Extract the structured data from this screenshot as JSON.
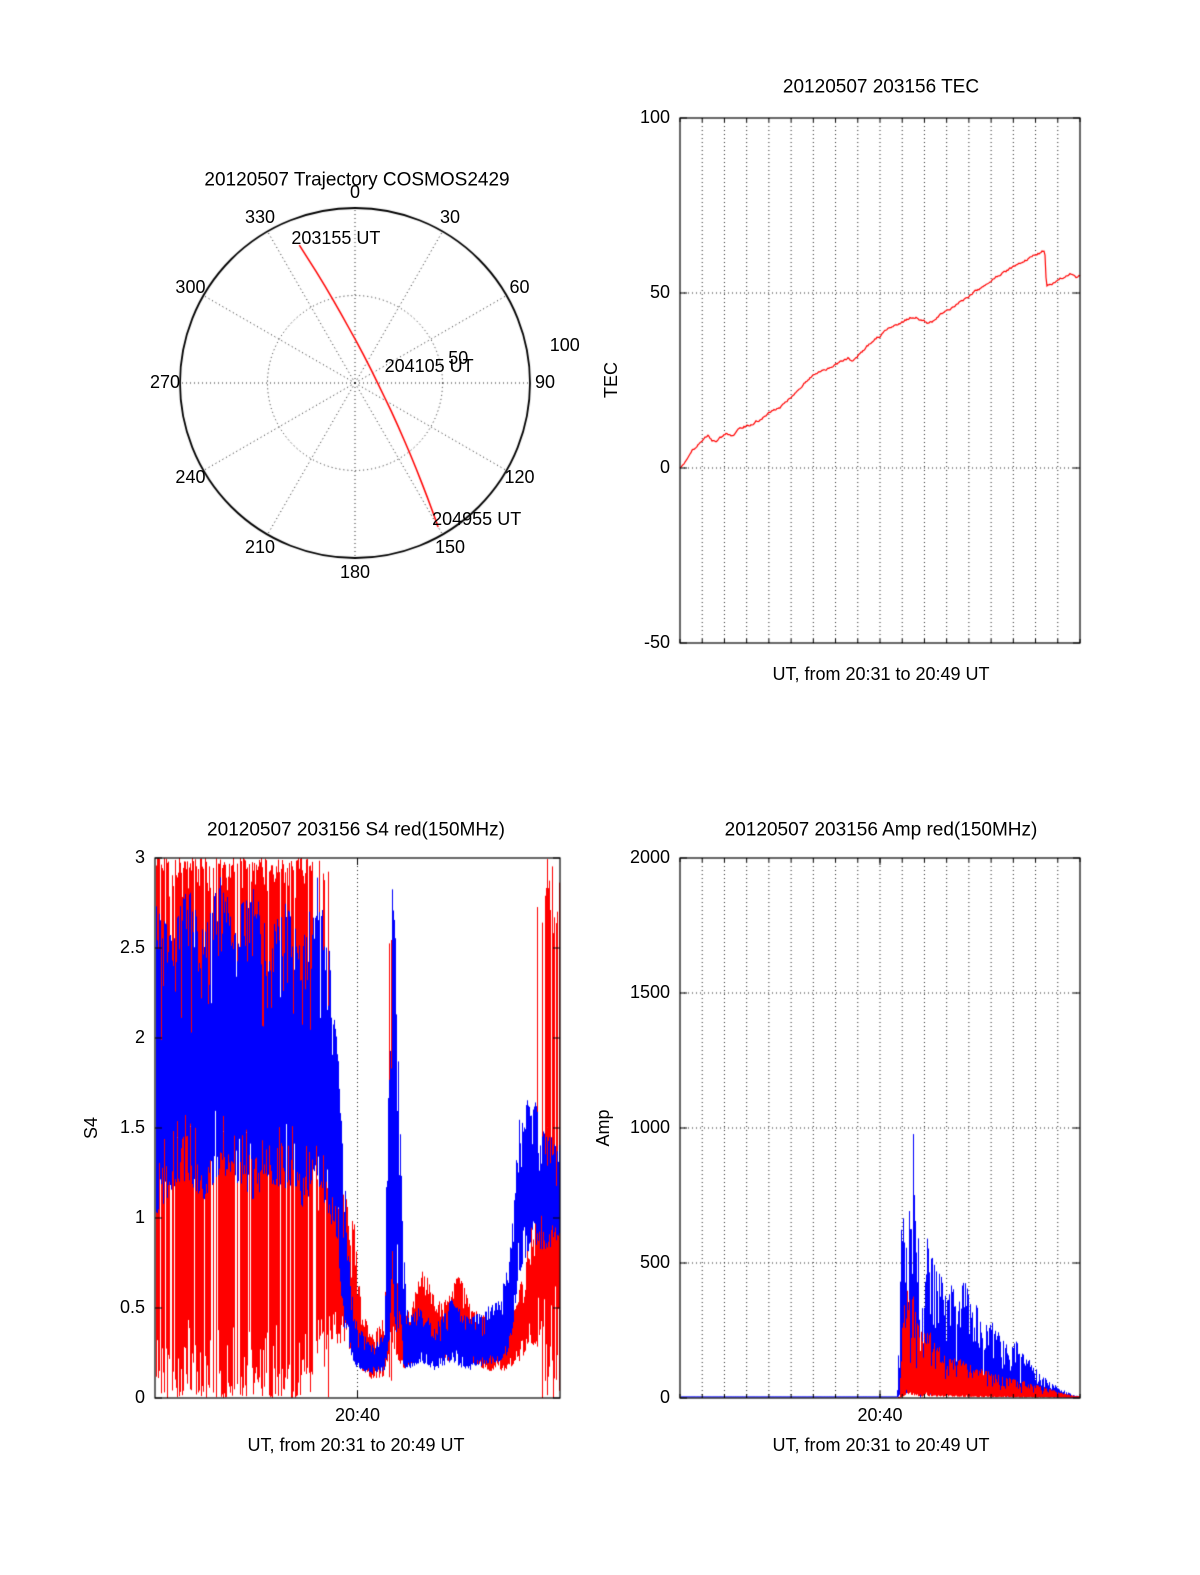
{
  "figure": {
    "background": "#ffffff"
  },
  "chart_data": [
    {
      "id": "trajectory",
      "type": "polar_trajectory",
      "title": "20120507 Trajectory COSMOS2429",
      "angle_ticks": [
        "0",
        "30",
        "60",
        "90",
        "120",
        "150",
        "180",
        "210",
        "240",
        "270",
        "300",
        "330"
      ],
      "ring_ticks": [
        "50",
        "100"
      ],
      "rings": [
        50,
        100
      ],
      "trajectory": {
        "color": "#ff0000",
        "points_xy": [
          [
            -0.318,
            0.788
          ],
          [
            -0.269,
            0.711
          ],
          [
            -0.22,
            0.634
          ],
          [
            -0.173,
            0.556
          ],
          [
            -0.127,
            0.478
          ],
          [
            -0.082,
            0.399
          ],
          [
            -0.038,
            0.32
          ],
          [
            0.006,
            0.241
          ],
          [
            0.048,
            0.162
          ],
          [
            0.089,
            0.082
          ],
          [
            0.129,
            0.001
          ],
          [
            0.168,
            -0.08
          ],
          [
            0.207,
            -0.161
          ],
          [
            0.244,
            -0.242
          ],
          [
            0.28,
            -0.324
          ],
          [
            0.315,
            -0.406
          ],
          [
            0.349,
            -0.489
          ],
          [
            0.382,
            -0.572
          ],
          [
            0.414,
            -0.655
          ],
          [
            0.445,
            -0.739
          ],
          [
            0.475,
            -0.823
          ]
        ],
        "time_labels": [
          {
            "text": "203155 UT",
            "x": -0.318,
            "y": 0.788
          },
          {
            "text": "204105 UT",
            "x": 0.129,
            "y": 0.001
          },
          {
            "text": "204955 UT",
            "x": 0.475,
            "y": -0.823
          }
        ]
      }
    },
    {
      "id": "tec",
      "type": "line",
      "title": "20120507 203156 TEC",
      "ylabel": "TEC",
      "xlabel": "UT, from 20:31 to 20:49 UT",
      "ylim": [
        -50,
        100
      ],
      "yticks": [
        -50,
        0,
        50,
        100
      ],
      "x_minutes": 18,
      "grid": {
        "minute_grid": true,
        "minute_ticks": true,
        "y_values": [
          0,
          50
        ]
      },
      "series": [
        {
          "name": "TEC",
          "color": "#ff0000",
          "points": [
            [
              0,
              0
            ],
            [
              0.01,
              1.5
            ],
            [
              0.02,
              3.5
            ],
            [
              0.03,
              5
            ],
            [
              0.045,
              6.5
            ],
            [
              0.06,
              8.8
            ],
            [
              0.07,
              9.2
            ],
            [
              0.08,
              7.8
            ],
            [
              0.09,
              7.6
            ],
            [
              0.1,
              8.6
            ],
            [
              0.115,
              9.6
            ],
            [
              0.13,
              9.2
            ],
            [
              0.145,
              10.8
            ],
            [
              0.16,
              11.8
            ],
            [
              0.175,
              12.2
            ],
            [
              0.19,
              13.4
            ],
            [
              0.205,
              13.8
            ],
            [
              0.22,
              15.5
            ],
            [
              0.235,
              16.4
            ],
            [
              0.25,
              17.2
            ],
            [
              0.265,
              18.8
            ],
            [
              0.28,
              20.4
            ],
            [
              0.3,
              22.5
            ],
            [
              0.315,
              24.6
            ],
            [
              0.33,
              26.2
            ],
            [
              0.345,
              27.3
            ],
            [
              0.36,
              28.1
            ],
            [
              0.375,
              28.8
            ],
            [
              0.39,
              29.6
            ],
            [
              0.405,
              30.4
            ],
            [
              0.42,
              31.2
            ],
            [
              0.43,
              30.4
            ],
            [
              0.44,
              31.6
            ],
            [
              0.455,
              33.2
            ],
            [
              0.47,
              34.8
            ],
            [
              0.485,
              36.4
            ],
            [
              0.5,
              37.8
            ],
            [
              0.515,
              39.4
            ],
            [
              0.53,
              40.6
            ],
            [
              0.545,
              41.2
            ],
            [
              0.56,
              42.0
            ],
            [
              0.575,
              42.8
            ],
            [
              0.59,
              43.2
            ],
            [
              0.605,
              42.2
            ],
            [
              0.62,
              41.2
            ],
            [
              0.635,
              41.8
            ],
            [
              0.65,
              43.6
            ],
            [
              0.67,
              45.4
            ],
            [
              0.7,
              47.4
            ],
            [
              0.73,
              49.6
            ],
            [
              0.76,
              52.0
            ],
            [
              0.79,
              54.4
            ],
            [
              0.82,
              56.6
            ],
            [
              0.85,
              58.6
            ],
            [
              0.875,
              60.2
            ],
            [
              0.9,
              61.4
            ],
            [
              0.912,
              62.2
            ],
            [
              0.916,
              52.2
            ],
            [
              0.93,
              52.8
            ],
            [
              0.945,
              53.6
            ],
            [
              0.96,
              54.6
            ],
            [
              0.975,
              55.2
            ],
            [
              0.99,
              54.4
            ],
            [
              1.0,
              55.0
            ]
          ]
        }
      ]
    },
    {
      "id": "s4",
      "type": "scintillation",
      "title": "20120507 203156 S4 red(150MHz)",
      "ylabel": "S4",
      "xlabel": "UT, from 20:31 to 20:49 UT",
      "ylim": [
        0,
        3
      ],
      "yticks": [
        0,
        0.5,
        1,
        1.5,
        2,
        2.5,
        3
      ],
      "xticks": [
        {
          "label": "20:40",
          "frac": 0.5
        }
      ],
      "x_minutes": 18,
      "grid": {
        "minute_grid": false,
        "minute_ticks": false,
        "x_fracs": [
          0.5
        ]
      },
      "red": {
        "color": "#ff0000",
        "ragged": 0.5,
        "lofactor": 0.3,
        "saturated_regions": [
          {
            "t0": 0,
            "t1": 0.385,
            "density": 0.9
          },
          {
            "t0": 0.385,
            "t1": 0.43,
            "density": 0.4,
            "fallback": [
              0.35,
              1.6
            ]
          }
        ],
        "spike_regions": [
          {
            "t0": 0.43,
            "t1": 0.462,
            "p": 0.2,
            "top": 3.0
          },
          {
            "t0": 0.575,
            "t1": 0.59,
            "p": 0.3,
            "top": 2.6
          },
          {
            "t0": 0.915,
            "t1": 0.952,
            "p": 0.1,
            "top": 3.0
          },
          {
            "t0": 0.952,
            "t1": 1.0,
            "p": 0.55,
            "top": 3.0
          }
        ],
        "envelope": [
          [
            0.43,
            0.3,
            1.4
          ],
          [
            0.46,
            0.3,
            1.2
          ],
          [
            0.49,
            0.25,
            1.0
          ],
          [
            0.51,
            0.15,
            0.5
          ],
          [
            0.535,
            0.1,
            0.35
          ],
          [
            0.565,
            0.12,
            0.45
          ],
          [
            0.578,
            0.2,
            1.2
          ],
          [
            0.585,
            0.3,
            2.2
          ],
          [
            0.592,
            0.2,
            1.0
          ],
          [
            0.6,
            0.15,
            0.5
          ],
          [
            0.63,
            0.18,
            0.5
          ],
          [
            0.66,
            0.25,
            0.75
          ],
          [
            0.69,
            0.2,
            0.55
          ],
          [
            0.72,
            0.2,
            0.55
          ],
          [
            0.75,
            0.25,
            0.7
          ],
          [
            0.78,
            0.2,
            0.5
          ],
          [
            0.82,
            0.15,
            0.45
          ],
          [
            0.86,
            0.15,
            0.4
          ],
          [
            0.89,
            0.18,
            0.5
          ],
          [
            0.915,
            0.25,
            0.8
          ],
          [
            0.94,
            0.3,
            1.1
          ],
          [
            0.96,
            0.4,
            1.3
          ],
          [
            1.0,
            0.5,
            1.3
          ]
        ]
      },
      "blue": {
        "color": "#0000ff",
        "ragged": 0.55,
        "lofactor": 0.3,
        "envelope": [
          [
            0,
            1.0,
            2.75
          ],
          [
            0.04,
            1.15,
            2.6
          ],
          [
            0.08,
            1.2,
            2.85
          ],
          [
            0.12,
            1.1,
            2.6
          ],
          [
            0.16,
            1.25,
            2.9
          ],
          [
            0.2,
            1.2,
            2.7
          ],
          [
            0.24,
            1.1,
            2.85
          ],
          [
            0.28,
            1.2,
            2.6
          ],
          [
            0.32,
            1.15,
            2.8
          ],
          [
            0.36,
            1.05,
            2.5
          ],
          [
            0.4,
            1.2,
            2.9
          ],
          [
            0.43,
            1.0,
            2.5
          ],
          [
            0.45,
            0.8,
            2.0
          ],
          [
            0.465,
            0.4,
            1.3
          ],
          [
            0.49,
            0.18,
            0.45
          ],
          [
            0.53,
            0.13,
            0.3
          ],
          [
            0.565,
            0.15,
            0.35
          ],
          [
            0.578,
            0.3,
            2.4
          ],
          [
            0.585,
            0.5,
            3.0
          ],
          [
            0.592,
            0.4,
            2.6
          ],
          [
            0.6,
            0.3,
            2.0
          ],
          [
            0.61,
            0.2,
            1.0
          ],
          [
            0.62,
            0.15,
            0.5
          ],
          [
            0.655,
            0.2,
            0.5
          ],
          [
            0.69,
            0.15,
            0.4
          ],
          [
            0.73,
            0.2,
            0.55
          ],
          [
            0.77,
            0.15,
            0.45
          ],
          [
            0.81,
            0.18,
            0.5
          ],
          [
            0.85,
            0.2,
            0.55
          ],
          [
            0.875,
            0.25,
            0.8
          ],
          [
            0.9,
            0.7,
            1.6
          ],
          [
            0.93,
            0.85,
            1.7
          ],
          [
            0.96,
            0.8,
            1.5
          ],
          [
            1,
            0.9,
            1.4
          ]
        ]
      }
    },
    {
      "id": "amp",
      "type": "scintillation",
      "title": "20120507 203156 Amp red(150MHz)",
      "ylabel": "Amp",
      "xlabel": "UT, from 20:31 to 20:49 UT",
      "ylim": [
        0,
        2000
      ],
      "yticks": [
        0,
        500,
        1000,
        1500,
        2000
      ],
      "xticks": [
        {
          "label": "20:40",
          "frac": 0.5
        }
      ],
      "x_minutes": 18,
      "grid": {
        "minute_grid": true,
        "minute_ticks": true,
        "y_values": [
          500,
          1000,
          1500
        ]
      },
      "blue": {
        "color": "#0000ff",
        "ragged": 0.85,
        "lofactor": 0.06,
        "envelope": [
          [
            0.0,
            2,
            5
          ],
          [
            0.54,
            2,
            5
          ],
          [
            0.548,
            5,
            250
          ],
          [
            0.552,
            10,
            620
          ],
          [
            0.558,
            20,
            760
          ],
          [
            0.565,
            15,
            640
          ],
          [
            0.572,
            20,
            700
          ],
          [
            0.578,
            15,
            620
          ],
          [
            0.583,
            30,
            1020
          ],
          [
            0.588,
            20,
            780
          ],
          [
            0.595,
            15,
            600
          ],
          [
            0.6,
            2,
            60
          ],
          [
            0.606,
            10,
            480
          ],
          [
            0.612,
            15,
            650
          ],
          [
            0.62,
            15,
            600
          ],
          [
            0.63,
            10,
            520
          ],
          [
            0.64,
            10,
            470
          ],
          [
            0.65,
            15,
            520
          ],
          [
            0.66,
            10,
            430
          ],
          [
            0.67,
            10,
            390
          ],
          [
            0.68,
            12,
            430
          ],
          [
            0.69,
            10,
            360
          ],
          [
            0.7,
            12,
            410
          ],
          [
            0.71,
            15,
            480
          ],
          [
            0.72,
            12,
            410
          ],
          [
            0.73,
            10,
            320
          ],
          [
            0.74,
            10,
            360
          ],
          [
            0.75,
            10,
            300
          ],
          [
            0.76,
            8,
            270
          ],
          [
            0.78,
            8,
            290
          ],
          [
            0.8,
            6,
            230
          ],
          [
            0.82,
            5,
            190
          ],
          [
            0.84,
            6,
            210
          ],
          [
            0.86,
            5,
            160
          ],
          [
            0.88,
            4,
            130
          ],
          [
            0.9,
            3,
            90
          ],
          [
            0.92,
            3,
            65
          ],
          [
            0.94,
            2,
            45
          ],
          [
            0.96,
            2,
            28
          ],
          [
            0.98,
            1,
            12
          ],
          [
            1.0,
            1,
            6
          ]
        ]
      },
      "red": {
        "color": "#ff0000",
        "ragged": 0.8,
        "lofactor": 0.06,
        "tstart": 0.545,
        "envelope": [
          [
            0.548,
            0,
            3
          ],
          [
            0.552,
            2,
            150
          ],
          [
            0.556,
            5,
            300
          ],
          [
            0.562,
            10,
            400
          ],
          [
            0.568,
            10,
            430
          ],
          [
            0.575,
            8,
            360
          ],
          [
            0.582,
            10,
            410
          ],
          [
            0.59,
            8,
            310
          ],
          [
            0.6,
            5,
            260
          ],
          [
            0.61,
            5,
            240
          ],
          [
            0.62,
            6,
            265
          ],
          [
            0.63,
            5,
            225
          ],
          [
            0.64,
            5,
            205
          ],
          [
            0.65,
            5,
            185
          ],
          [
            0.66,
            4,
            165
          ],
          [
            0.68,
            4,
            155
          ],
          [
            0.7,
            4,
            145
          ],
          [
            0.72,
            4,
            125
          ],
          [
            0.74,
            3,
            115
          ],
          [
            0.76,
            3,
            105
          ],
          [
            0.78,
            3,
            95
          ],
          [
            0.8,
            3,
            85
          ],
          [
            0.83,
            3,
            72
          ],
          [
            0.86,
            2,
            62
          ],
          [
            0.9,
            2,
            46
          ],
          [
            0.94,
            2,
            26
          ],
          [
            0.97,
            1,
            13
          ],
          [
            1.0,
            1,
            6
          ]
        ]
      }
    }
  ]
}
